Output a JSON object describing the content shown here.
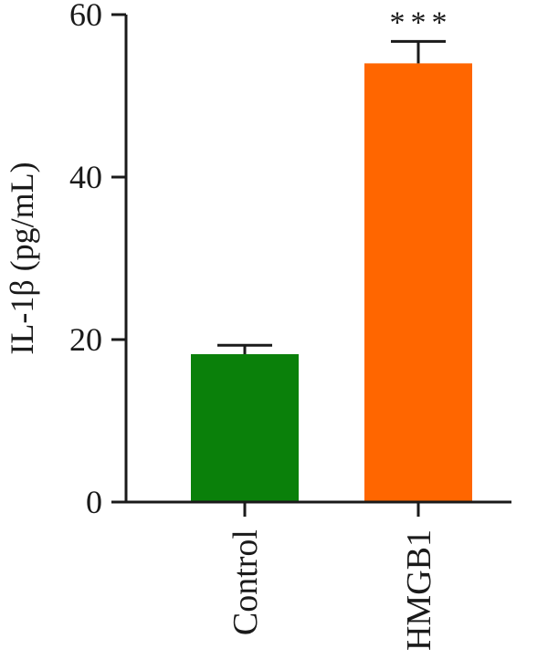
{
  "chart_data": {
    "type": "bar",
    "title": "",
    "xlabel": "",
    "ylabel": "IL-1β (pg/mL)",
    "ylim": [
      0,
      60
    ],
    "yticks": [
      0,
      20,
      40,
      60
    ],
    "grid": false,
    "categories": [
      "Control",
      "HMGB1"
    ],
    "values": [
      18.2,
      54.0
    ],
    "errors": [
      1.1,
      2.7
    ],
    "colors": [
      "#0a800a",
      "#ff6600"
    ],
    "significance": [
      "",
      "***"
    ]
  }
}
